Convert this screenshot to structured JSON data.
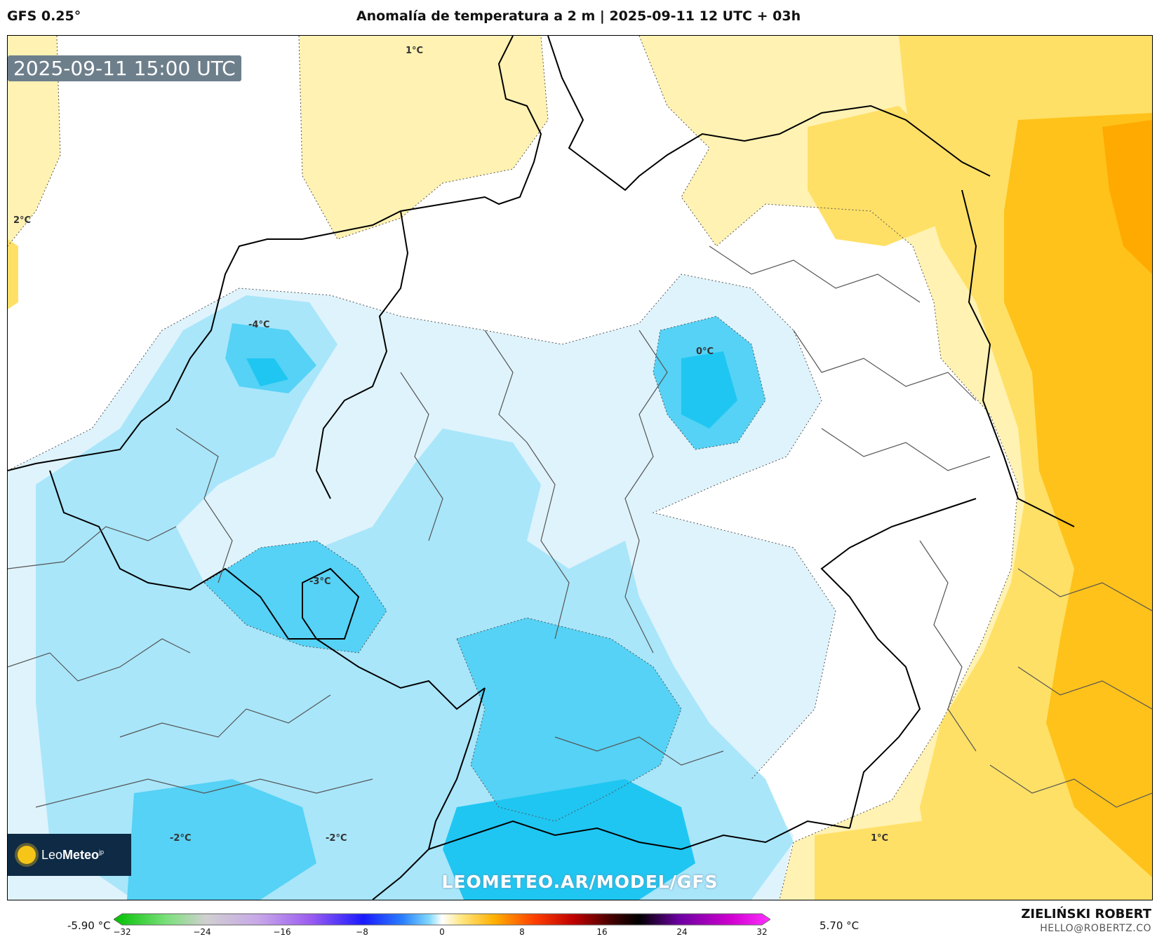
{
  "header": {
    "model": "GFS 0.25°",
    "title": "Anomalía de temperatura a 2 m | 2025-09-11 12 UTC + 03h"
  },
  "map": {
    "timestamp": "2025-09-11 15:00 UTC",
    "watermark": "LEOMETEO.AR/MODEL/GFS",
    "logo": {
      "name": "Leo",
      "bold": "Meteo",
      "suffix": "jp"
    },
    "contour_labels": [
      "1°C",
      "2°C",
      "-4°C",
      "0°C",
      "-3°C",
      "-2°C",
      "-2°C",
      "1°C"
    ]
  },
  "legend": {
    "min_label": "-5.90 °C",
    "max_label": "5.70 °C",
    "ticks": [
      "−32",
      "−24",
      "−16",
      "−8",
      "0",
      "8",
      "16",
      "24",
      "32"
    ],
    "tick_values": [
      -32,
      -24,
      -16,
      -8,
      0,
      8,
      16,
      24,
      32
    ],
    "range": [
      -32,
      32
    ]
  },
  "credit": {
    "author": "ZIELIŃSKI ROBERT",
    "email": "HELLO@ROBERTZ.CO"
  },
  "colors": {
    "pale_yellow": "#fff2b3",
    "yellow": "#ffe066",
    "orange": "#ffb400",
    "light_blue": "#dff3fc",
    "blue": "#a9e6fa",
    "deep_blue": "#55d2f5",
    "deepest_blue": "#1fc6f2"
  }
}
